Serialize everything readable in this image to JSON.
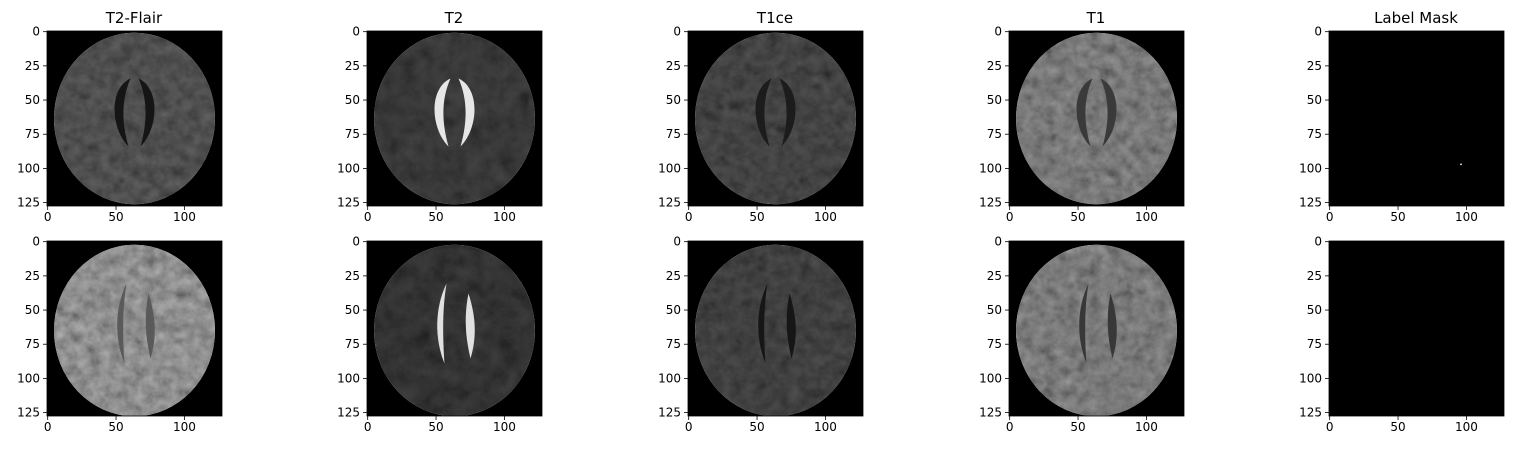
{
  "figure": {
    "columns": [
      "T2-Flair",
      "T2",
      "T1ce",
      "T1",
      "Label Mask"
    ],
    "rows": 2,
    "image_shape": [
      128,
      128
    ],
    "xticks": [
      0,
      50,
      100
    ],
    "yticks": [
      0,
      25,
      50,
      75,
      100,
      125
    ],
    "colormap": "gray",
    "background_color": "#000000",
    "mask_points": [
      {
        "row": 0,
        "col": 4,
        "x": 96,
        "y": 97
      }
    ]
  }
}
